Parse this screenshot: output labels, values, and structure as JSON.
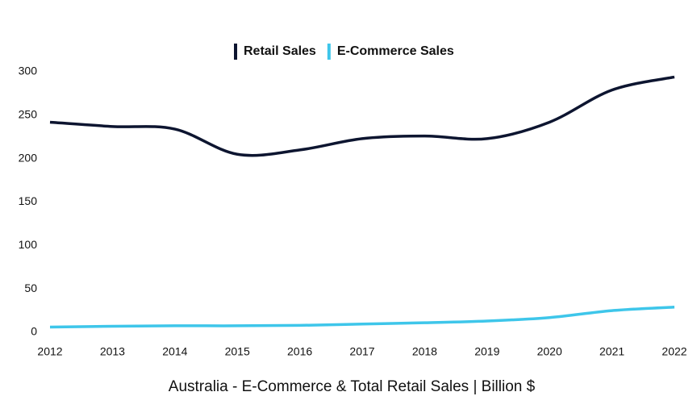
{
  "chart_data": {
    "type": "line",
    "title": "Australia - E-Commerce & Total Retail Sales | Billion $",
    "x": [
      2012,
      2013,
      2014,
      2015,
      2016,
      2017,
      2018,
      2019,
      2020,
      2021,
      2022
    ],
    "series": [
      {
        "name": "Retail Sales",
        "color": "#0d1530",
        "values": [
          242,
          237,
          234,
          205,
          210,
          223,
          226,
          223,
          242,
          279,
          294
        ]
      },
      {
        "name": "E-Commerce Sales",
        "color": "#3ec6ea",
        "values": [
          6,
          7,
          7.5,
          7.5,
          8,
          9.5,
          11,
          13,
          17,
          25,
          29
        ]
      }
    ],
    "xlim": [
      2012,
      2022
    ],
    "xticks": [
      2012,
      2013,
      2014,
      2015,
      2016,
      2017,
      2018,
      2019,
      2020,
      2021,
      2022
    ],
    "ylim": [
      0,
      300
    ],
    "yticks": [
      0,
      50,
      100,
      150,
      200,
      250,
      300
    ],
    "grid": false,
    "legend": "top"
  }
}
